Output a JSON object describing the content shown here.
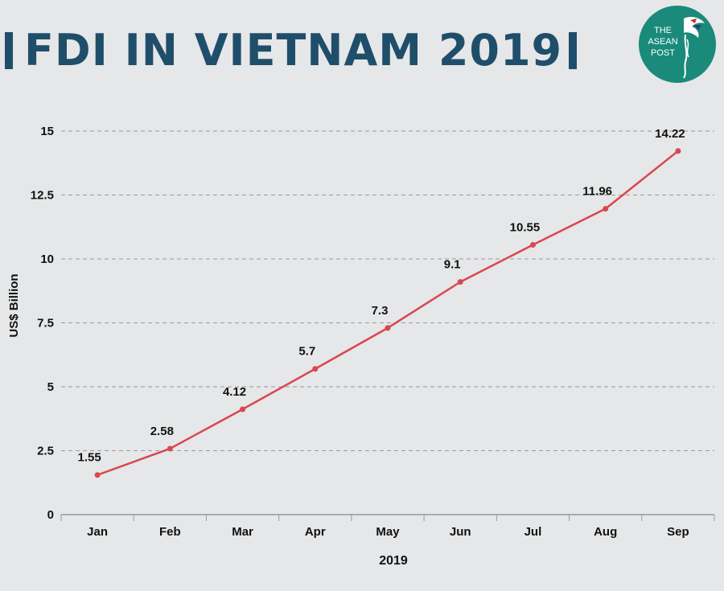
{
  "header": {
    "title": "FDI IN VIETNAM 2019"
  },
  "logo": {
    "line1": "THE",
    "line2": "ASEAN",
    "line3": "POST",
    "icon": "hummingbird-icon",
    "bg_color": "#1a8a7a"
  },
  "colors": {
    "title": "#1f4e6b",
    "line": "#d9474f",
    "grid": "#9a9a9a",
    "background": "#e6e7e8"
  },
  "chart_data": {
    "type": "line",
    "categories": [
      "Jan",
      "Feb",
      "Mar",
      "Apr",
      "May",
      "Jun",
      "Jul",
      "Aug",
      "Sep"
    ],
    "values": [
      1.55,
      2.58,
      4.12,
      5.7,
      7.3,
      9.1,
      10.55,
      11.96,
      14.22
    ],
    "data_labels": [
      "1.55",
      "2.58",
      "4.12",
      "5.7",
      "7.3",
      "9.1",
      "10.55",
      "11.96",
      "14.22"
    ],
    "xlabel": "2019",
    "ylabel": "US$ Billion",
    "ylim": [
      0,
      15
    ],
    "yticks": [
      0,
      2.5,
      5,
      7.5,
      10,
      12.5,
      15
    ],
    "ytick_labels": [
      "0",
      "2.5",
      "5",
      "7.5",
      "10",
      "12.5",
      "15"
    ],
    "grid": true,
    "grid_style": "dashed",
    "legend": "none"
  }
}
